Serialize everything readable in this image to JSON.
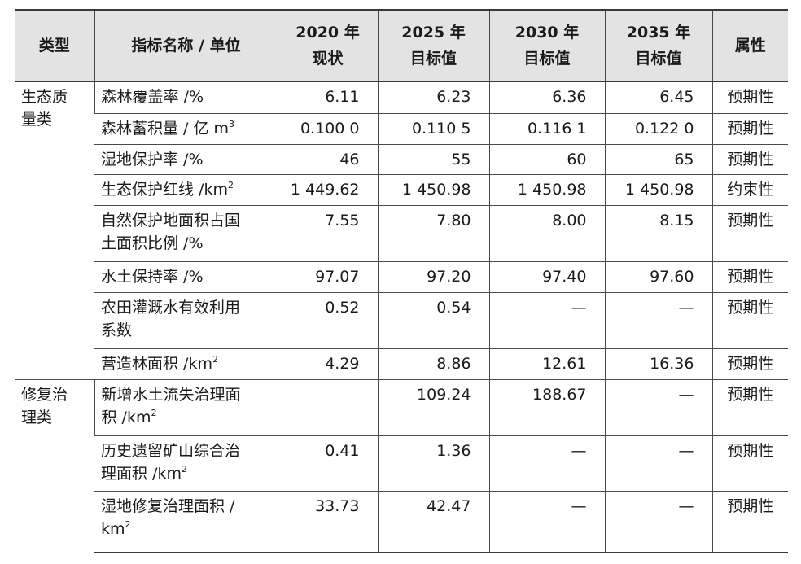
{
  "header": {
    "col_type": "类型",
    "col_name": "指标名称 / 单位",
    "col_2020": "2020 年\n现状",
    "col_2025": "2025 年\n目标值",
    "col_2030": "2030 年\n目标值",
    "col_2035": "2035 年\n目标值",
    "col_attr": "属性"
  },
  "categories": {
    "ecology_quality": "生态质\n量类",
    "restoration": "修复治\n理类"
  },
  "rows": [
    {
      "name": "森林覆盖率 /%",
      "sup": "",
      "v2020": "6.11",
      "v2025": "6.23",
      "v2030": "6.36",
      "v2035": "6.45",
      "attr": "预期性"
    },
    {
      "name": "森林蓄积量 / 亿 m",
      "sup": "3",
      "v2020": "0.100 0",
      "v2025": "0.110 5",
      "v2030": "0.116 1",
      "v2035": "0.122 0",
      "attr": "预期性"
    },
    {
      "name": "湿地保护率 /%",
      "sup": "",
      "v2020": "46",
      "v2025": "55",
      "v2030": "60",
      "v2035": "65",
      "attr": "预期性"
    },
    {
      "name": "生态保护红线 /km",
      "sup": "2",
      "v2020": "1 449.62",
      "v2025": "1 450.98",
      "v2030": "1 450.98",
      "v2035": "1 450.98",
      "attr": "约束性"
    },
    {
      "name": "自然保护地面积占国\n土面积比例 /%",
      "sup": "",
      "v2020": "7.55",
      "v2025": "7.80",
      "v2030": "8.00",
      "v2035": "8.15",
      "attr": "预期性"
    },
    {
      "name": "水土保持率 /%",
      "sup": "",
      "v2020": "97.07",
      "v2025": "97.20",
      "v2030": "97.40",
      "v2035": "97.60",
      "attr": "预期性"
    },
    {
      "name": "农田灌溉水有效利用\n系数",
      "sup": "",
      "v2020": "0.52",
      "v2025": "0.54",
      "v2030": "—",
      "v2035": "—",
      "attr": "预期性"
    },
    {
      "name": "营造林面积 /km",
      "sup": "2",
      "v2020": "4.29",
      "v2025": "8.86",
      "v2030": "12.61",
      "v2035": "16.36",
      "attr": "预期性"
    },
    {
      "name": "新增水土流失治理面\n积 /km",
      "sup": "2",
      "v2020": "",
      "v2025": "109.24",
      "v2030": "188.67",
      "v2035": "—",
      "attr": "预期性"
    },
    {
      "name": "历史遗留矿山综合治\n理面积 /km",
      "sup": "2",
      "v2020": "0.41",
      "v2025": "1.36",
      "v2030": "—",
      "v2035": "—",
      "attr": "预期性"
    },
    {
      "name": "湿地修复治理面积 /\nkm",
      "sup": "2",
      "v2020": "33.73",
      "v2025": "42.47",
      "v2030": "—",
      "v2035": "—",
      "attr": "预期性"
    }
  ]
}
